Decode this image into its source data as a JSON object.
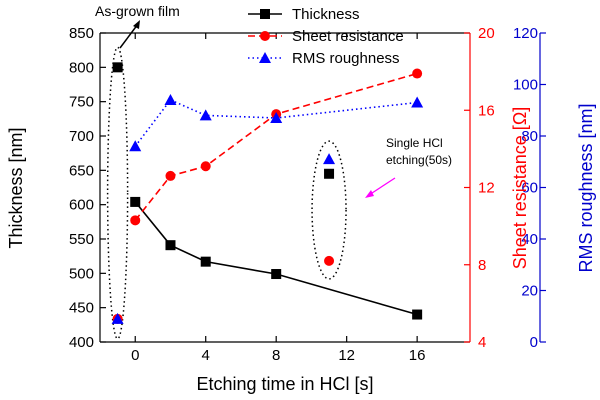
{
  "chart_data": {
    "type": "line",
    "xlabel": "Etching time in HCl [s]",
    "xlim": [
      -2,
      19
    ],
    "xticks": [
      0,
      4,
      8,
      12,
      16
    ],
    "left_axis": {
      "label": "Thickness [nm]",
      "ylim": [
        400,
        850
      ],
      "ticks": [
        400,
        450,
        500,
        550,
        600,
        650,
        700,
        750,
        800,
        850
      ],
      "color": "#000000"
    },
    "right_axis_1": {
      "label": "Sheet resistance [Ω]",
      "ylim": [
        4,
        20
      ],
      "ticks": [
        4,
        8,
        12,
        16,
        20
      ],
      "color": "#ff0000"
    },
    "right_axis_2": {
      "label": "RMS roughness [nm]",
      "ylim": [
        0,
        120
      ],
      "ticks": [
        0,
        20,
        40,
        60,
        80,
        100,
        120
      ],
      "color": "#0000cc"
    },
    "series": [
      {
        "name": "Thickness",
        "axis": "left",
        "color": "#000000",
        "marker": "square",
        "line": "solid",
        "x": [
          0,
          2,
          4,
          8,
          16
        ],
        "y": [
          604,
          541,
          517,
          499,
          440
        ]
      },
      {
        "name": "Sheet resistance",
        "axis": "right1",
        "color": "#ff0000",
        "marker": "circle",
        "line": "dashed",
        "x": [
          0,
          2,
          4,
          8,
          16
        ],
        "y": [
          10.3,
          12.6,
          13.1,
          15.8,
          17.9
        ]
      },
      {
        "name": "RMS roughness",
        "axis": "right2",
        "color": "#0000ff",
        "marker": "triangle",
        "line": "dotted",
        "x": [
          0,
          2,
          4,
          8,
          16
        ],
        "y": [
          76,
          94,
          88,
          87,
          93
        ]
      }
    ],
    "extra_points": [
      {
        "label": "As-grown film",
        "x": -1,
        "thickness": 800,
        "sheet_resistance": 5.2,
        "rms_roughness": 9
      },
      {
        "label": "Single HCl etching(50s)",
        "x": 11,
        "thickness": 645,
        "sheet_resistance": 8.2,
        "rms_roughness": 71
      }
    ],
    "legend": {
      "placement": "top-center"
    },
    "annotations": {
      "as_grown": "As-grown film",
      "single_line1": "Single HCl",
      "single_line2": "etching(50s)"
    }
  }
}
